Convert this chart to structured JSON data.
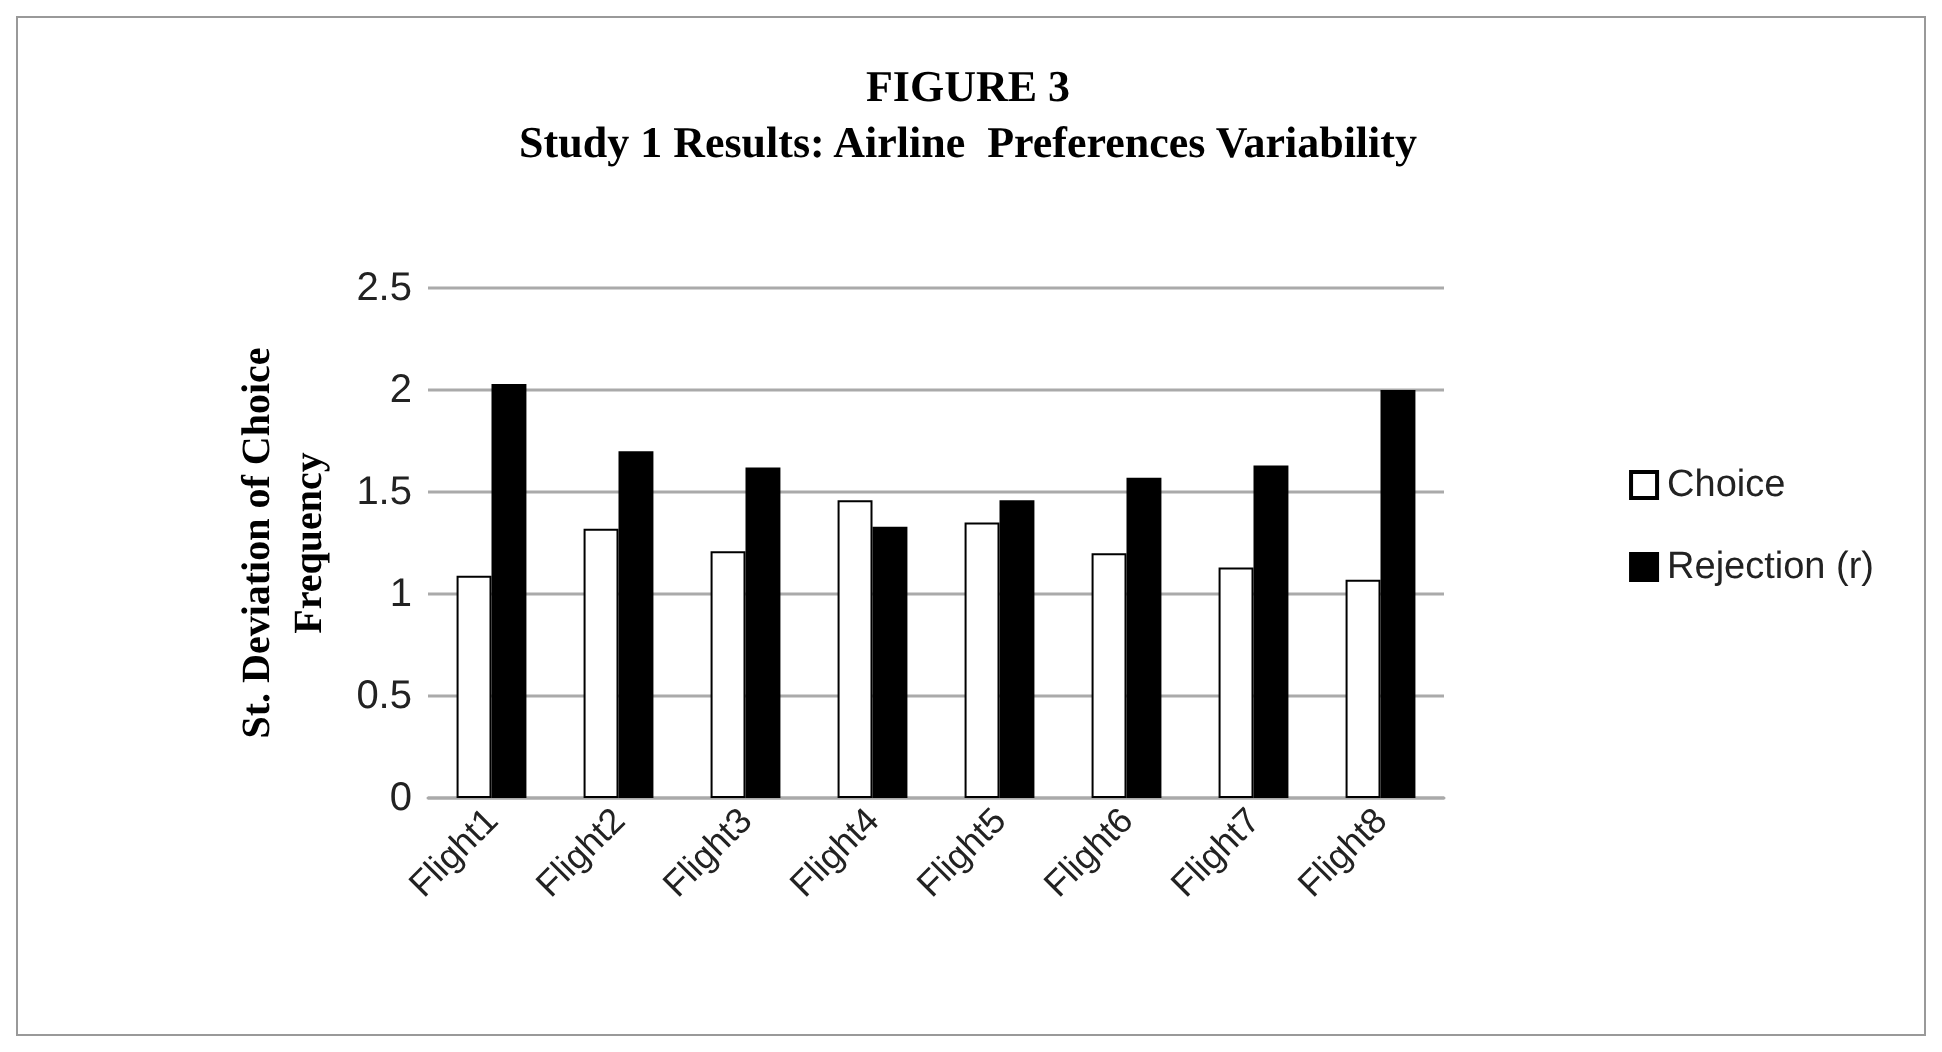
{
  "chart_data": {
    "type": "bar",
    "title": "FIGURE 3",
    "subtitle": "Study 1 Results: Airline  Preferences Variability",
    "ylabel": "St. Deviation of Choice Frequency",
    "categories": [
      "Flight1",
      "Flight2",
      "Flight3",
      "Flight4",
      "Flight5",
      "Flight6",
      "Flight7",
      "Flight8"
    ],
    "series": [
      {
        "name": "Choice",
        "color": "#ffffff",
        "values": [
          1.09,
          1.32,
          1.21,
          1.46,
          1.35,
          1.2,
          1.13,
          1.07
        ]
      },
      {
        "name": "Rejection (r)",
        "color": "#000000",
        "values": [
          2.03,
          1.7,
          1.62,
          1.33,
          1.46,
          1.57,
          1.63,
          2.0
        ]
      }
    ],
    "ylim": [
      0,
      2.5
    ],
    "yticks": [
      0,
      0.5,
      1,
      1.5,
      2,
      2.5
    ],
    "grid": "y",
    "legend": "right"
  }
}
